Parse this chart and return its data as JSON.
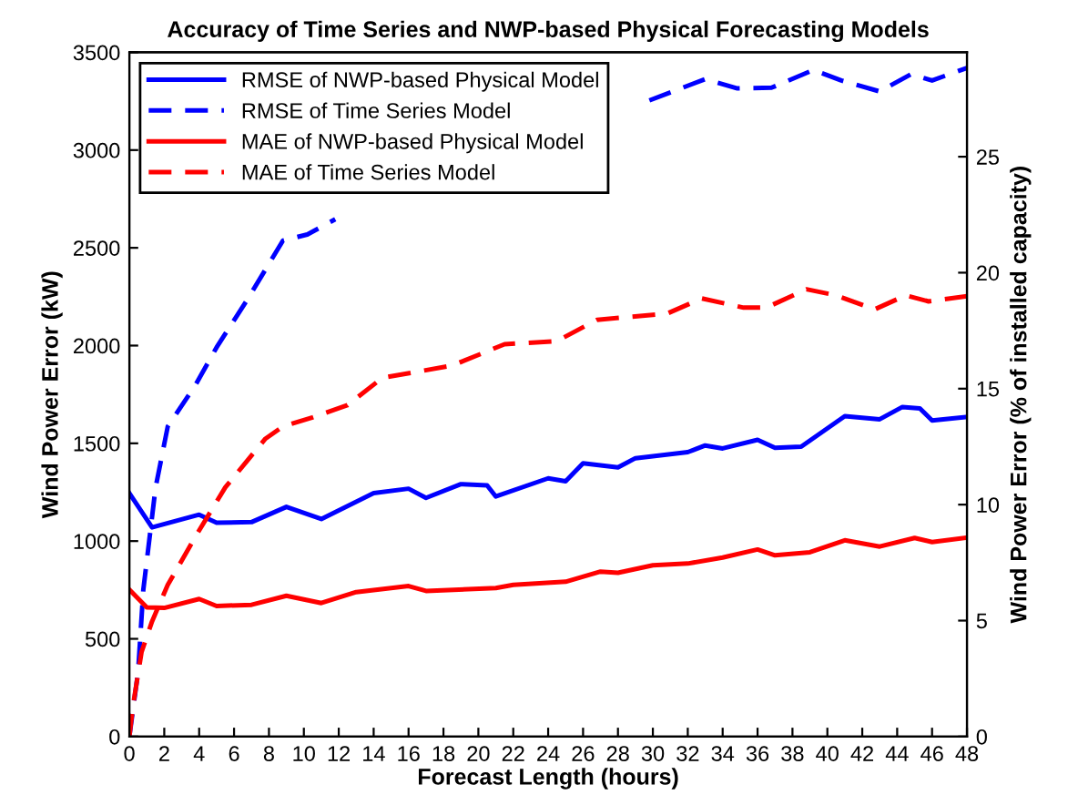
{
  "chart_data": {
    "type": "line",
    "title": "Accuracy of Time Series and NWP-based Physical Forecasting Models",
    "xlabel": "Forecast Length (hours)",
    "ylabel": "Wind Power Error (kW)",
    "y2label": "Wind Power Error (% of installed capacity)",
    "xlim": [
      0,
      48
    ],
    "xticks": [
      0,
      2,
      4,
      6,
      8,
      10,
      12,
      14,
      16,
      18,
      20,
      22,
      24,
      26,
      28,
      30,
      32,
      34,
      36,
      38,
      40,
      42,
      44,
      46,
      48
    ],
    "ylim": [
      0,
      3500
    ],
    "yticks": [
      0,
      500,
      1000,
      1500,
      2000,
      2500,
      3000,
      3500
    ],
    "y2lim": [
      0,
      29.5
    ],
    "y2ticks": [
      0,
      5,
      10,
      15,
      20,
      25
    ],
    "legend": "top left",
    "grid": false,
    "series": [
      {
        "name": "RMSE of NWP-based Physical Model",
        "color": "#0000ff",
        "line_style": "solid",
        "x": [
          0,
          1.3,
          4,
          5,
          7,
          9,
          11,
          14,
          16,
          17,
          19,
          20.5,
          21,
          24,
          25,
          26,
          28,
          29,
          32,
          33,
          34,
          36,
          37,
          38.5,
          41,
          43,
          44.3,
          45.3,
          46,
          48
        ],
        "values": [
          1245,
          1070,
          1135,
          1094,
          1097,
          1175,
          1113,
          1245,
          1268,
          1221,
          1291,
          1285,
          1228,
          1321,
          1306,
          1398,
          1377,
          1424,
          1455,
          1489,
          1474,
          1518,
          1477,
          1483,
          1639,
          1623,
          1686,
          1679,
          1617,
          1635
        ]
      },
      {
        "name": "RMSE of Time Series Model",
        "color": "#0000ff",
        "line_style": "dashed",
        "x": [
          0,
          0.5,
          0.8,
          1.5,
          2.2,
          3.8,
          5,
          6.8,
          8.8,
          10.2,
          11.8,
          20,
          29.8,
          33,
          34.8,
          36.8,
          39.2,
          40.8,
          43,
          44.8,
          46,
          48
        ],
        "values": [
          0,
          330,
          751,
          1272,
          1586,
          1800,
          1991,
          2241,
          2537,
          2568,
          2646,
          null,
          3254,
          3363,
          3316,
          3319,
          3410,
          3356,
          3300,
          3388,
          3356,
          3420
        ]
      },
      {
        "name": "MAE of NWP-based Physical Model",
        "color": "#ff0000",
        "line_style": "solid",
        "x": [
          0,
          1,
          2,
          4,
          5,
          7,
          9,
          11,
          13,
          16,
          17,
          21,
          22,
          25,
          27,
          28,
          30,
          32,
          34,
          36,
          37,
          39,
          41,
          43,
          45,
          46,
          48
        ],
        "values": [
          751,
          661,
          658,
          704,
          668,
          674,
          720,
          683,
          739,
          770,
          745,
          760,
          776,
          792,
          844,
          838,
          876,
          885,
          916,
          957,
          927,
          943,
          1004,
          972,
          1016,
          995,
          1018
        ]
      },
      {
        "name": "MAE of Time Series Model",
        "color": "#ff0000",
        "line_style": "dashed",
        "x": [
          0,
          0.2,
          0.7,
          1.3,
          2.2,
          3.8,
          5.5,
          7.8,
          8.8,
          10.5,
          12.5,
          14.5,
          16.5,
          18.5,
          21.5,
          24.5,
          26.8,
          30.8,
          32.8,
          35.2,
          36.5,
          38.8,
          40.5,
          42.7,
          44.5,
          45.8,
          48
        ],
        "values": [
          0,
          153,
          433,
          589,
          776,
          1025,
          1275,
          1524,
          1586,
          1633,
          1695,
          1835,
          1866,
          1898,
          2007,
          2023,
          2132,
          2163,
          2241,
          2194,
          2194,
          2288,
          2257,
          2185,
          2257,
          2226,
          2253
        ]
      }
    ]
  }
}
